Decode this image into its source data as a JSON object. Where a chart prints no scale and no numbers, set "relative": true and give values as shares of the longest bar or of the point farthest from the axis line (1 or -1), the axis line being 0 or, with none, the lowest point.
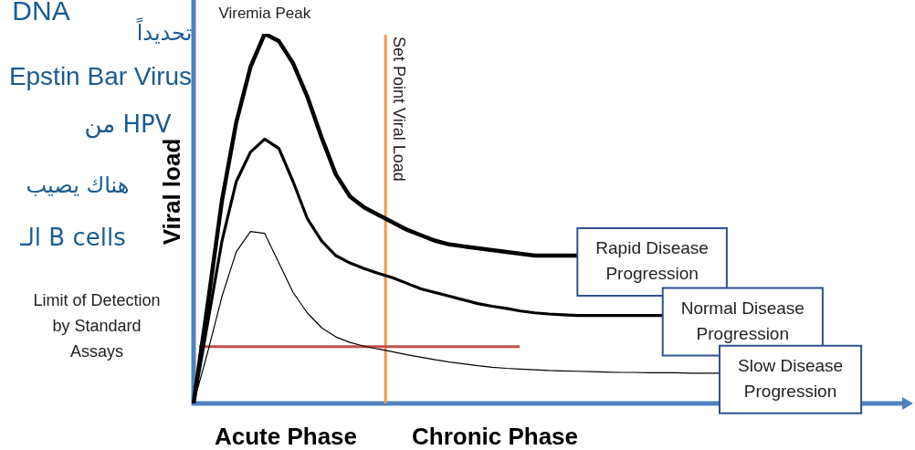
{
  "chart_data": {
    "type": "line",
    "relative": true,
    "ylabel": "Viral load",
    "marker": "none",
    "line_style": "solid",
    "categories": [
      null,
      null,
      null,
      null,
      null,
      null,
      null,
      null,
      null,
      null,
      null,
      null,
      null,
      null,
      null,
      null,
      null,
      null,
      null,
      null,
      null,
      null,
      null,
      null,
      null,
      null,
      null,
      null,
      null,
      null,
      null,
      null,
      null,
      null,
      null,
      null,
      null,
      null
    ],
    "series": [
      {
        "name": "Rapid Disease Progression",
        "color": "#000000",
        "values": [
          0,
          0.27,
          0.55,
          0.76,
          0.91,
          1,
          0.98,
          0.92,
          0.83,
          0.72,
          0.62,
          0.56,
          0.53,
          0.51,
          0.49,
          0.47,
          0.455,
          0.44,
          0.43,
          0.425,
          0.42,
          0.415,
          0.41,
          0.405,
          0.4,
          0.4,
          0.4,
          0.4,
          null,
          null,
          null,
          null,
          null,
          null,
          null,
          null,
          null,
          null
        ]
      },
      {
        "name": "Normal Disease Progression",
        "color": "#000000",
        "values": [
          0,
          0.22,
          0.44,
          0.6,
          0.68,
          0.715,
          0.69,
          0.6,
          0.5,
          0.44,
          0.4,
          0.38,
          0.365,
          0.352,
          0.34,
          0.325,
          0.31,
          0.3,
          0.29,
          0.28,
          0.27,
          0.263,
          0.257,
          0.25,
          0.245,
          0.242,
          0.24,
          0.238,
          0.238,
          0.238,
          0.238,
          0.238,
          0.238,
          0.238,
          null,
          null,
          null,
          null
        ]
      },
      {
        "name": "Slow Disease Progression",
        "color": "#000000",
        "values": [
          0,
          0.14,
          0.29,
          0.41,
          0.465,
          0.46,
          0.38,
          0.3,
          0.245,
          0.205,
          0.18,
          0.165,
          0.155,
          0.147,
          0.14,
          0.132,
          0.125,
          0.118,
          0.112,
          0.107,
          0.102,
          0.098,
          0.095,
          0.093,
          0.091,
          0.089,
          0.088,
          0.087,
          0.086,
          0.085,
          0.084,
          0.084,
          0.083,
          0.083,
          0.083,
          0.082,
          0.082,
          0.082
        ]
      }
    ],
    "ref_lines": [
      {
        "axis": "y",
        "value": 0.154,
        "label": "Limit of Detection by Standard Assays",
        "color": "#c0504d"
      }
    ],
    "annotations": [
      {
        "text": "Viremia Peak",
        "y": 1
      },
      "Acute Phase",
      "Chronic Phase",
      "DNA",
      "تحديداً",
      "Epstin Bar Virus",
      "من HPV",
      "هناك يصيب",
      "الـ B cells",
      "Set Point Viral Load"
    ]
  }
}
